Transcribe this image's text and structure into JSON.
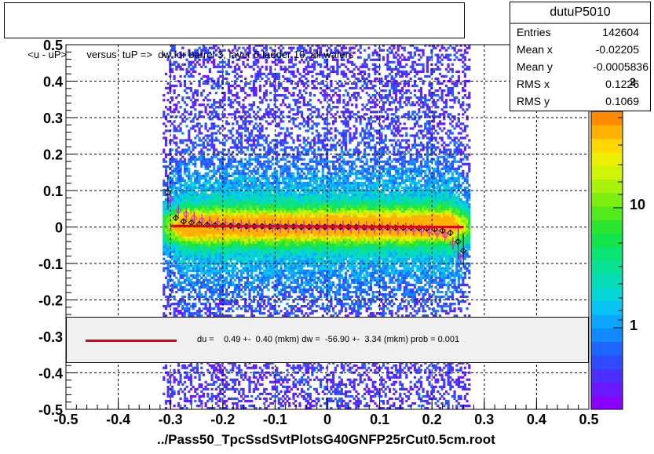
{
  "title": "<u - uP>       versus  tuP =>  dw for barrel 3, layer 5 ladder 10, all wafers",
  "footer": "../Pass50_TpcSsdSvtPlotsG40GNFP25rCut0.5cm.root",
  "stats": {
    "name": "dutuP5010",
    "rows": [
      {
        "key": "Entries",
        "value": "142604"
      },
      {
        "key": "Mean x",
        "value": "-0.02205"
      },
      {
        "key": "Mean y",
        "value": "-0.0005836"
      },
      {
        "key": "RMS x",
        "value": "0.1226"
      },
      {
        "key": "RMS y",
        "value": "0.1069"
      }
    ]
  },
  "fit": {
    "text": "du =    0.49 +-  0.40 (mkm) dw =  -56.90 +-  3.34 (mkm) prob = 0.001",
    "line_color": "#e0001a"
  },
  "colorbar": {
    "tick_labels": [
      "1",
      "10"
    ],
    "exponent_fragment": "2",
    "palette": [
      "#8a00ff",
      "#6a18ff",
      "#4b30ff",
      "#2f4aff",
      "#1e66ff",
      "#128aff",
      "#0ca6ff",
      "#08c2f6",
      "#06d6d6",
      "#06dcb8",
      "#08e296",
      "#0ae472",
      "#12e44c",
      "#2ae630",
      "#52ea1c",
      "#7cee12",
      "#a8f20c",
      "#d0f408",
      "#eef004",
      "#ffd800",
      "#ffb000",
      "#ff8a00"
    ]
  },
  "chart_data": {
    "type": "heatmap",
    "title": "<u - uP>       versus  tuP =>  dw for barrel 3, layer 5 ladder 10, all wafers",
    "xlabel": "../Pass50_TpcSsdSvtPlotsG40GNFP25rCut0.5cm.root",
    "ylabel": "",
    "xlim": [
      -0.5,
      0.5
    ],
    "ylim": [
      -0.5,
      0.5
    ],
    "x_ticks": [
      -0.5,
      -0.4,
      -0.3,
      -0.2,
      -0.1,
      0,
      0.1,
      0.2,
      0.3,
      0.4,
      0.5
    ],
    "y_ticks": [
      -0.5,
      -0.4,
      -0.3,
      -0.2,
      -0.1,
      0,
      0.1,
      0.2,
      0.3,
      0.4,
      0.5
    ],
    "x_tick_labels": [
      "-0.5",
      "-0.4",
      "-0.3",
      "-0.2",
      "-0.1",
      "0",
      "0.1",
      "0.2",
      "0.3",
      "0.4",
      "0.5"
    ],
    "y_tick_labels": [
      "-0.5",
      "-0.4",
      "-0.3",
      "-0.2",
      "-0.1",
      "0",
      "0.1",
      "0.2",
      "0.3",
      "0.4",
      "0.5"
    ],
    "grid": true,
    "z_scale": "log",
    "occupied_x_range": [
      -0.3,
      0.26
    ],
    "band_center_y": 0.0,
    "fit_line": {
      "x": [
        -0.3,
        0.26
      ],
      "y": [
        0.003,
        0.0
      ]
    },
    "profile_black": {
      "x": [
        -0.305,
        -0.29,
        -0.275,
        -0.26,
        -0.245,
        -0.23,
        -0.215,
        -0.2,
        -0.185,
        -0.17,
        -0.155,
        -0.14,
        -0.125,
        -0.11,
        -0.095,
        -0.08,
        -0.065,
        -0.05,
        -0.035,
        -0.02,
        -0.005,
        0.01,
        0.025,
        0.04,
        0.055,
        0.07,
        0.085,
        0.1,
        0.115,
        0.13,
        0.145,
        0.16,
        0.175,
        0.19,
        0.205,
        0.22,
        0.235,
        0.25,
        0.26
      ],
      "y": [
        0.095,
        0.025,
        0.015,
        0.012,
        0.008,
        0.006,
        0.005,
        0.004,
        0.003,
        0.003,
        0.002,
        0.002,
        0.002,
        0.001,
        0.001,
        0.001,
        0.001,
        0.0,
        0.0,
        0.0,
        0.0,
        0.0,
        0.0,
        0.0,
        0.0,
        -0.001,
        -0.001,
        -0.001,
        -0.001,
        -0.002,
        -0.002,
        -0.002,
        -0.003,
        -0.004,
        -0.006,
        -0.01,
        -0.016,
        -0.04,
        -0.065
      ]
    },
    "profile_magenta": {
      "x": [
        -0.3,
        -0.285,
        -0.27,
        -0.255,
        -0.24,
        -0.225,
        -0.21,
        -0.195,
        -0.18,
        -0.165,
        -0.15,
        -0.135,
        -0.12,
        -0.105,
        -0.09,
        -0.075,
        -0.06,
        -0.045,
        -0.03,
        -0.015,
        0.0,
        0.015,
        0.03,
        0.045,
        0.06,
        0.075,
        0.09,
        0.105,
        0.12,
        0.135,
        0.15,
        0.165,
        0.18,
        0.195,
        0.21,
        0.225,
        0.24,
        0.255
      ],
      "y": [
        0.075,
        0.045,
        0.035,
        0.025,
        0.018,
        0.012,
        0.009,
        0.007,
        0.005,
        0.004,
        0.003,
        0.003,
        0.002,
        0.002,
        0.001,
        0.001,
        0.001,
        0.0,
        0.0,
        0.0,
        0.0,
        0.0,
        0.0,
        -0.001,
        -0.001,
        -0.001,
        -0.002,
        -0.002,
        -0.003,
        -0.004,
        -0.005,
        -0.006,
        -0.008,
        -0.01,
        -0.015,
        -0.022,
        -0.045,
        -0.082
      ]
    }
  }
}
